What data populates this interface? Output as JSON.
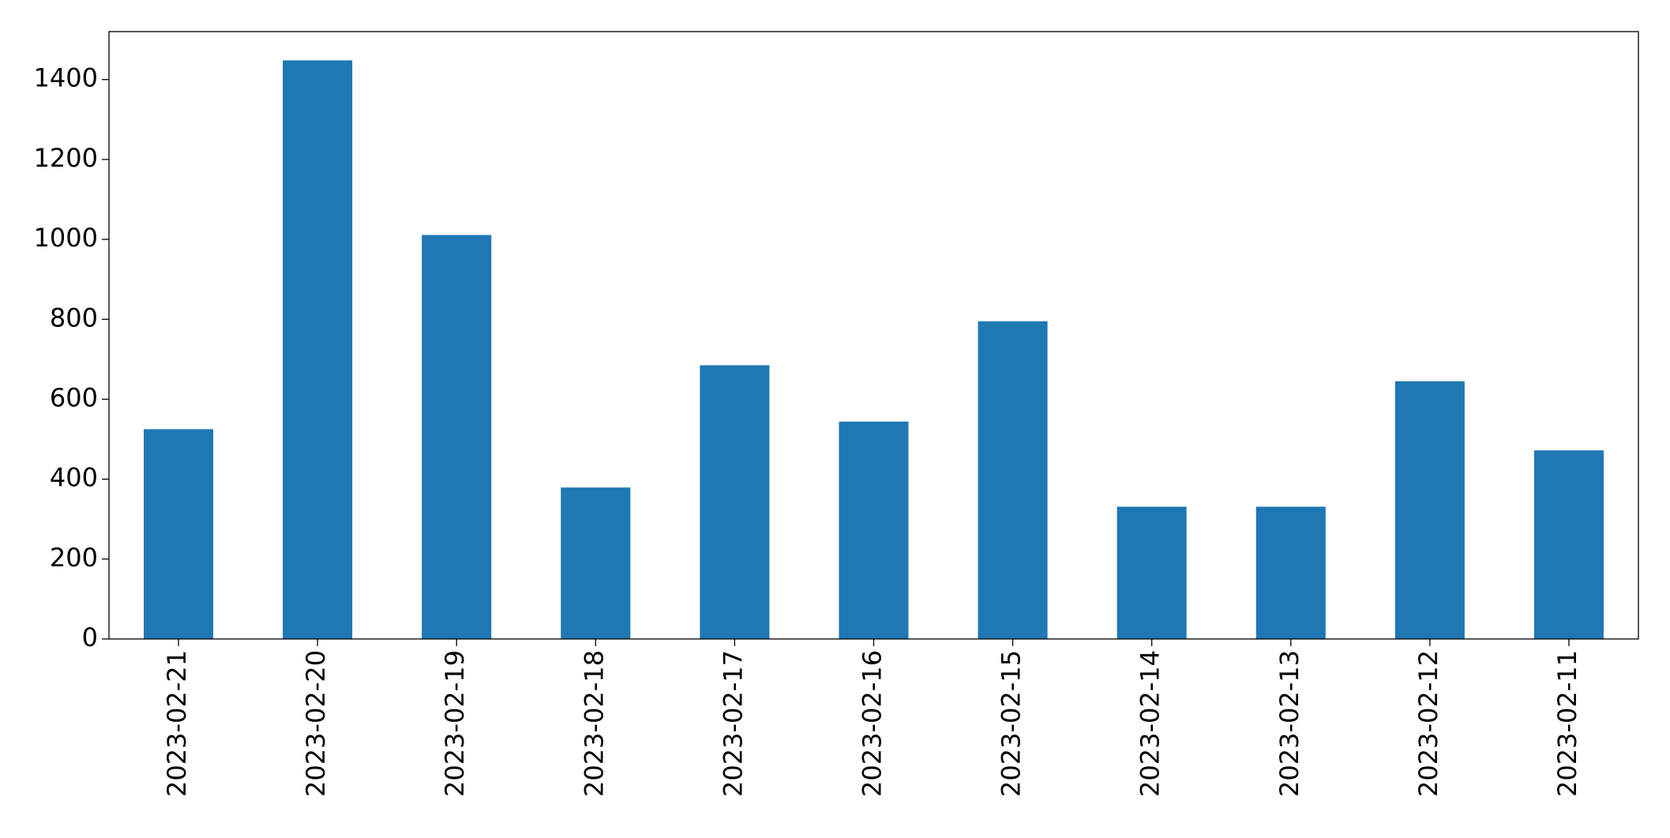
{
  "chart_data": {
    "type": "bar",
    "categories": [
      "2023-02-21",
      "2023-02-20",
      "2023-02-19",
      "2023-02-18",
      "2023-02-17",
      "2023-02-16",
      "2023-02-15",
      "2023-02-14",
      "2023-02-13",
      "2023-02-12",
      "2023-02-11"
    ],
    "values": [
      525,
      1448,
      1011,
      379,
      685,
      544,
      795,
      331,
      331,
      645,
      472
    ],
    "color": "#1f77b4",
    "ylim": [
      0,
      1520
    ],
    "yticks": [
      0,
      200,
      400,
      600,
      800,
      1000,
      1200,
      1400
    ],
    "grid": false
  }
}
